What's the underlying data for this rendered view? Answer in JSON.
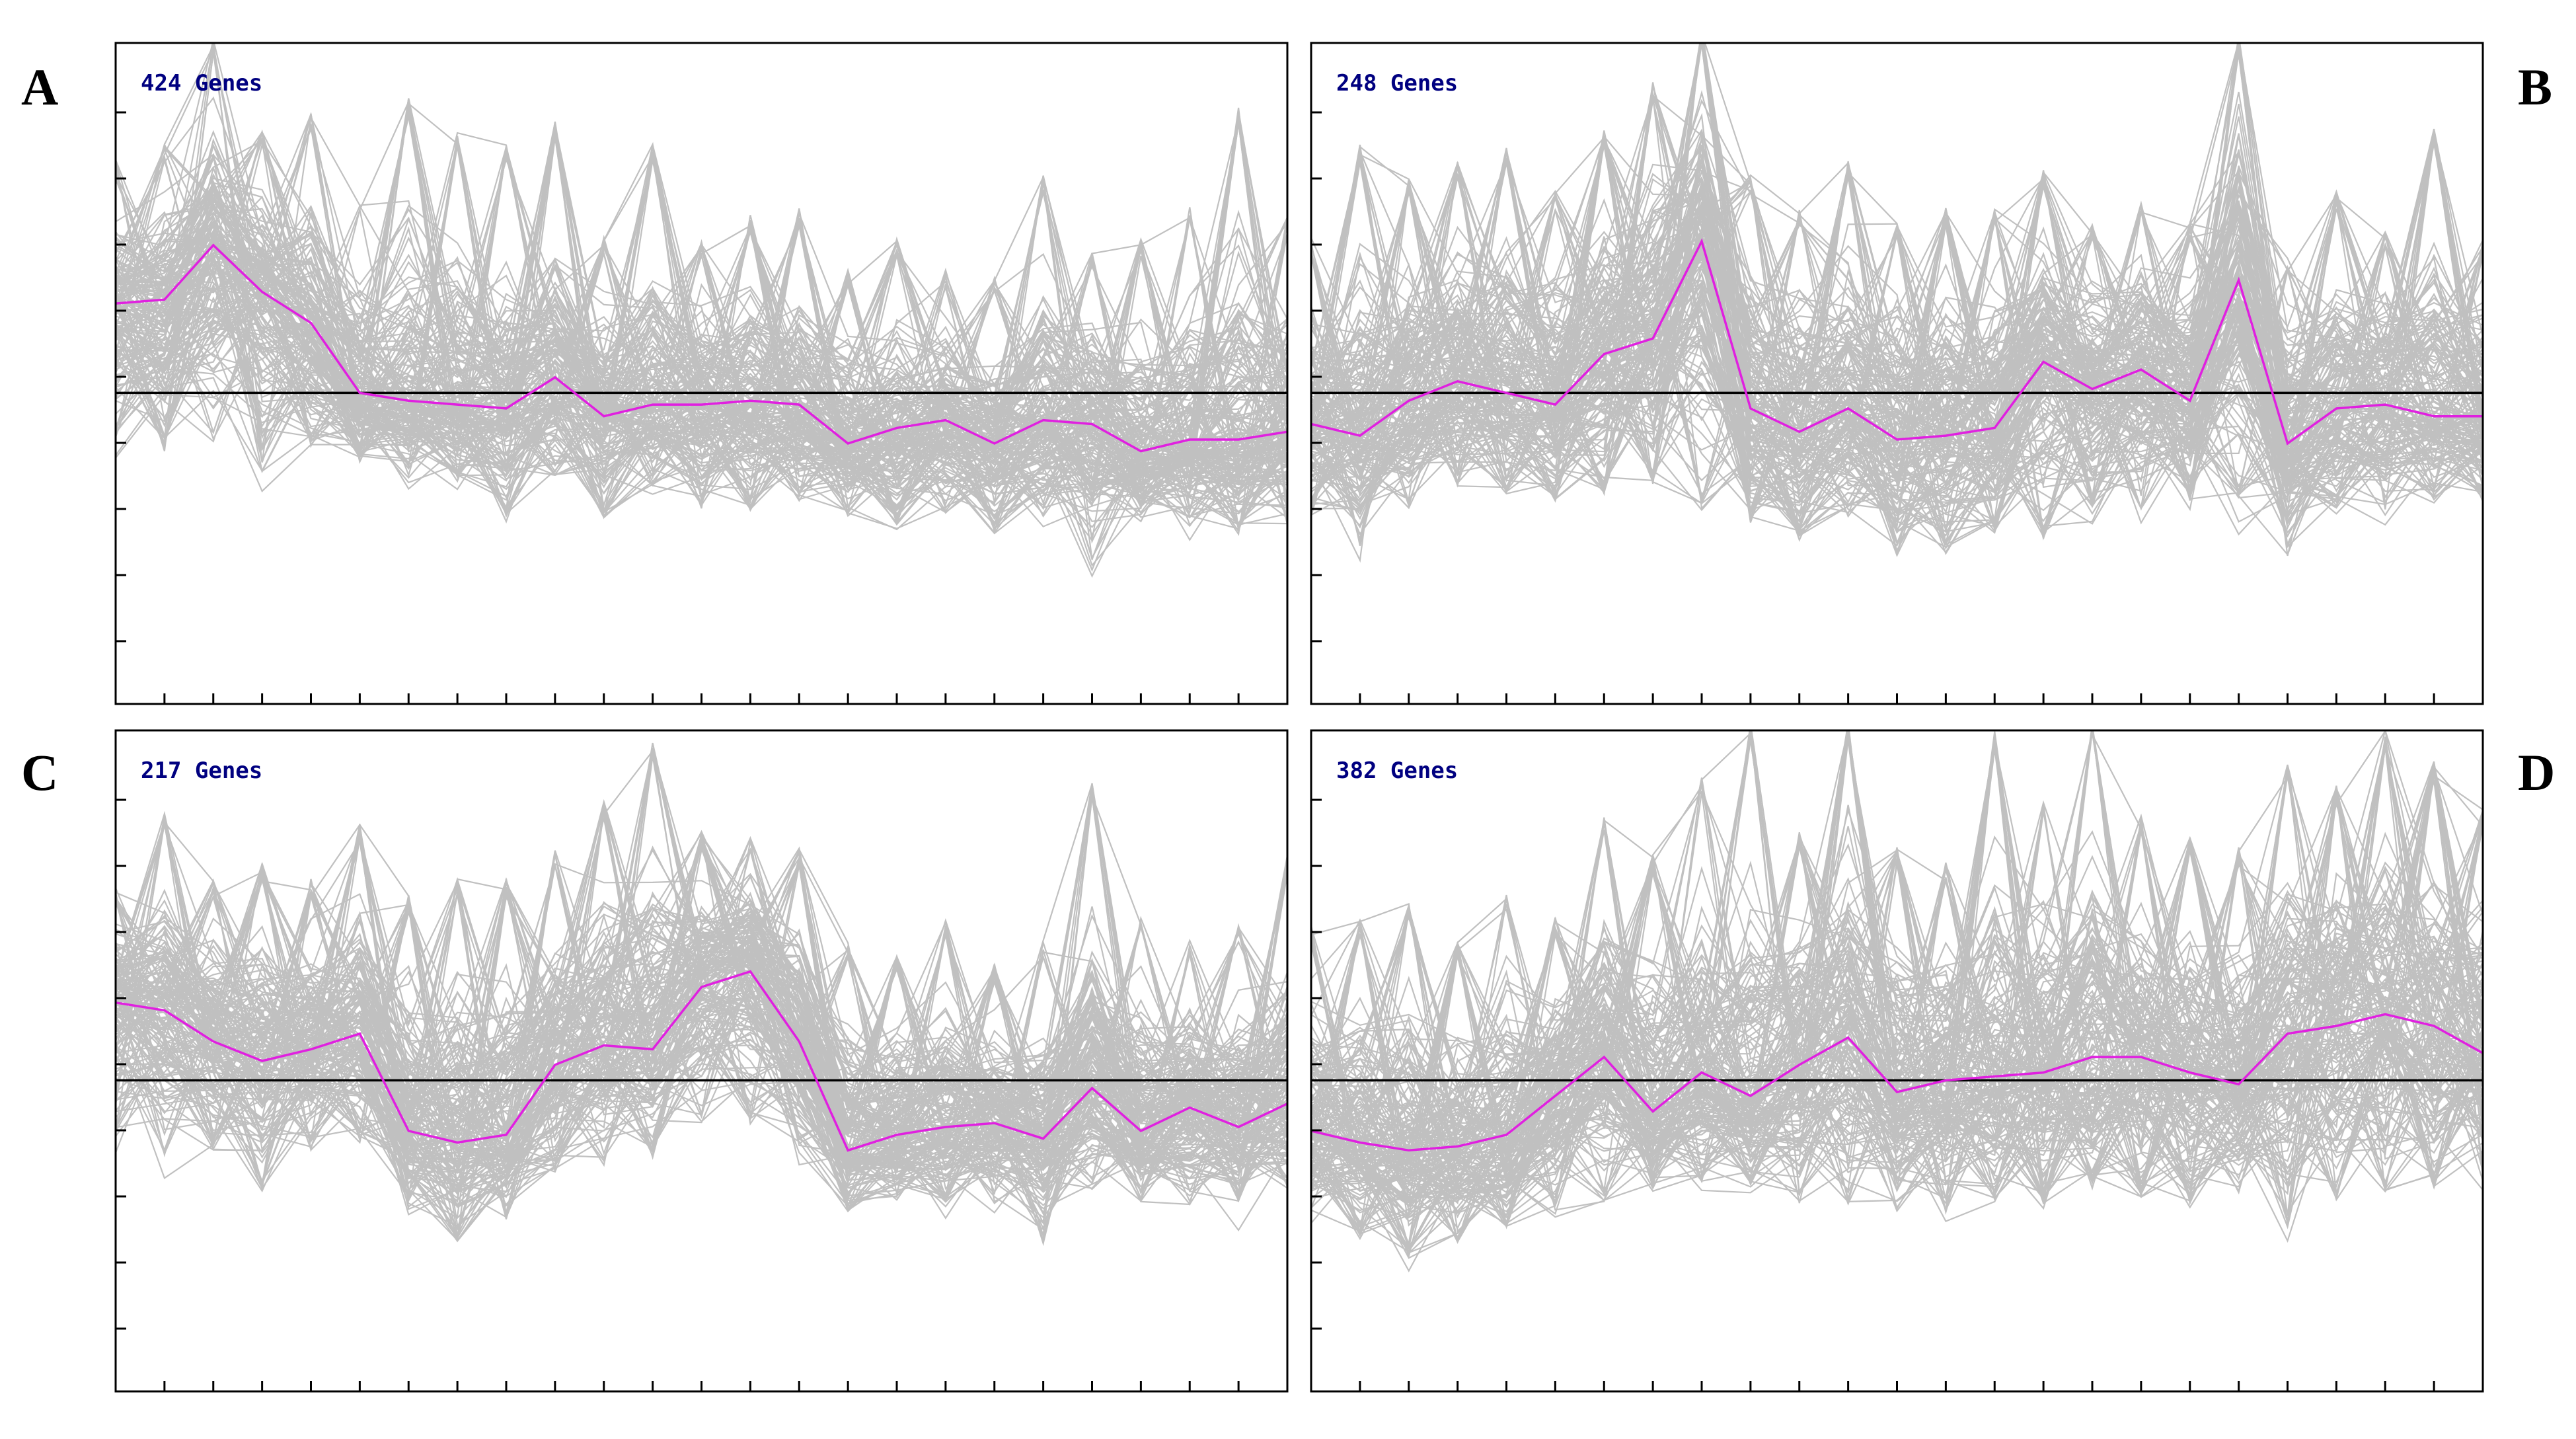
{
  "figure_title": "",
  "colors": {
    "profile_lines": "#c0c0c0",
    "mean_profile": "#e020e0",
    "baseline": "#000000",
    "gene_count_text": "#000080",
    "frame": "#000000"
  },
  "chart_data": [
    {
      "type": "line",
      "panel_label": "A",
      "gene_count_label": "424 Genes",
      "x_points": 25,
      "ylim": [
        -4,
        4.5
      ],
      "baseline": 0,
      "xlabel": "",
      "ylabel": "",
      "background_profiles": "424 gene expression profiles drawn in grey",
      "mean_profile": [
        1.15,
        1.2,
        1.9,
        1.3,
        0.9,
        0.0,
        -0.1,
        -0.15,
        -0.2,
        0.2,
        -0.3,
        -0.15,
        -0.15,
        -0.1,
        -0.15,
        -0.65,
        -0.45,
        -0.35,
        -0.65,
        -0.35,
        -0.4,
        -0.75,
        -0.6,
        -0.6,
        -0.5
      ],
      "grey_envelope_upper": [
        3.0,
        3.2,
        4.6,
        3.4,
        3.6,
        2.5,
        3.8,
        3.4,
        3.2,
        3.5,
        2.0,
        3.2,
        2.0,
        2.3,
        2.4,
        1.6,
        2.0,
        1.6,
        1.5,
        2.8,
        1.8,
        2.0,
        2.4,
        3.7,
        2.3
      ],
      "grey_envelope_lower": [
        -0.6,
        -0.8,
        -0.7,
        -0.9,
        -0.7,
        -0.9,
        -1.1,
        -1.2,
        -1.7,
        -1.1,
        -1.6,
        -1.2,
        -1.5,
        -1.5,
        -1.4,
        -1.6,
        -1.7,
        -1.6,
        -1.8,
        -1.6,
        -2.3,
        -1.6,
        -1.7,
        -1.8,
        -1.7
      ],
      "grid": false,
      "legend": "none"
    },
    {
      "type": "line",
      "panel_label": "B",
      "gene_count_label": "248 Genes",
      "x_points": 25,
      "ylim": [
        -4,
        4.5
      ],
      "baseline": 0,
      "xlabel": "",
      "ylabel": "",
      "background_profiles": "248 gene expression profiles drawn in grey",
      "mean_profile": [
        -0.4,
        -0.55,
        -0.1,
        0.15,
        0.0,
        -0.15,
        0.5,
        0.7,
        1.95,
        -0.2,
        -0.5,
        -0.2,
        -0.6,
        -0.55,
        -0.45,
        0.4,
        0.05,
        0.3,
        -0.1,
        1.45,
        -0.65,
        -0.2,
        -0.15,
        -0.3,
        -0.3
      ],
      "grey_envelope_upper": [
        2.0,
        3.2,
        2.8,
        3.0,
        3.2,
        2.6,
        3.4,
        4.0,
        4.7,
        2.8,
        2.4,
        3.0,
        2.2,
        2.4,
        2.4,
        2.9,
        2.2,
        2.5,
        2.2,
        4.6,
        1.8,
        2.6,
        2.1,
        3.4,
        2.0
      ],
      "grey_envelope_lower": [
        -1.6,
        -2.0,
        -1.5,
        -1.2,
        -1.3,
        -1.4,
        -1.3,
        -1.2,
        -1.5,
        -1.7,
        -1.9,
        -1.6,
        -2.1,
        -2.1,
        -1.8,
        -1.9,
        -1.5,
        -1.5,
        -1.4,
        -1.4,
        -2.1,
        -1.5,
        -1.5,
        -1.4,
        -1.4
      ],
      "grid": false,
      "legend": "none"
    },
    {
      "type": "line",
      "panel_label": "C",
      "gene_count_label": "217 Genes",
      "x_points": 25,
      "ylim": [
        -4,
        4.5
      ],
      "baseline": 0,
      "xlabel": "",
      "ylabel": "",
      "background_profiles": "217 gene expression profiles drawn in grey",
      "mean_profile": [
        1.0,
        0.9,
        0.5,
        0.25,
        0.4,
        0.6,
        -0.65,
        -0.8,
        -0.7,
        0.2,
        0.45,
        0.4,
        1.2,
        1.4,
        0.5,
        -0.9,
        -0.7,
        -0.6,
        -0.55,
        -0.75,
        -0.1,
        -0.65,
        -0.35,
        -0.6,
        -0.3
      ],
      "grey_envelope_upper": [
        2.5,
        3.5,
        2.6,
        2.8,
        2.6,
        3.3,
        2.4,
        2.6,
        2.6,
        3.0,
        3.6,
        4.4,
        3.2,
        3.2,
        3.0,
        1.8,
        1.6,
        2.1,
        1.5,
        1.8,
        3.9,
        2.1,
        1.8,
        2.0,
        2.9
      ],
      "grey_envelope_lower": [
        -0.8,
        -1.0,
        -0.9,
        -1.4,
        -0.9,
        -0.8,
        -1.6,
        -2.1,
        -1.8,
        -1.2,
        -1.1,
        -1.0,
        -0.6,
        -0.5,
        -0.9,
        -1.7,
        -1.6,
        -1.6,
        -1.6,
        -2.1,
        -1.4,
        -1.6,
        -1.6,
        -1.6,
        -1.4
      ],
      "grid": false,
      "legend": "none"
    },
    {
      "type": "line",
      "panel_label": "D",
      "gene_count_label": "382 Genes",
      "x_points": 25,
      "ylim": [
        -4,
        4.5
      ],
      "baseline": 0,
      "xlabel": "",
      "ylabel": "",
      "background_profiles": "382 gene expression profiles drawn in grey",
      "mean_profile": [
        -0.65,
        -0.8,
        -0.9,
        -0.85,
        -0.7,
        -0.2,
        0.3,
        -0.4,
        0.1,
        -0.2,
        0.2,
        0.55,
        -0.15,
        0.0,
        0.05,
        0.1,
        0.3,
        0.3,
        0.1,
        -0.05,
        0.6,
        0.7,
        0.85,
        0.7,
        0.35
      ],
      "grey_envelope_upper": [
        2.0,
        2.1,
        2.3,
        1.8,
        2.4,
        2.1,
        3.4,
        2.9,
        3.9,
        4.6,
        3.2,
        4.6,
        3.0,
        2.8,
        4.5,
        3.6,
        4.6,
        3.4,
        3.2,
        3.0,
        4.1,
        3.8,
        4.5,
        4.1,
        3.5
      ],
      "grey_envelope_lower": [
        -1.7,
        -2.0,
        -2.3,
        -2.1,
        -1.9,
        -1.7,
        -1.6,
        -1.4,
        -1.3,
        -1.4,
        -1.6,
        -1.7,
        -1.6,
        -1.7,
        -1.6,
        -1.6,
        -1.4,
        -1.5,
        -1.6,
        -1.5,
        -1.9,
        -1.6,
        -1.5,
        -1.4,
        -1.3
      ],
      "grid": false,
      "legend": "none"
    }
  ]
}
